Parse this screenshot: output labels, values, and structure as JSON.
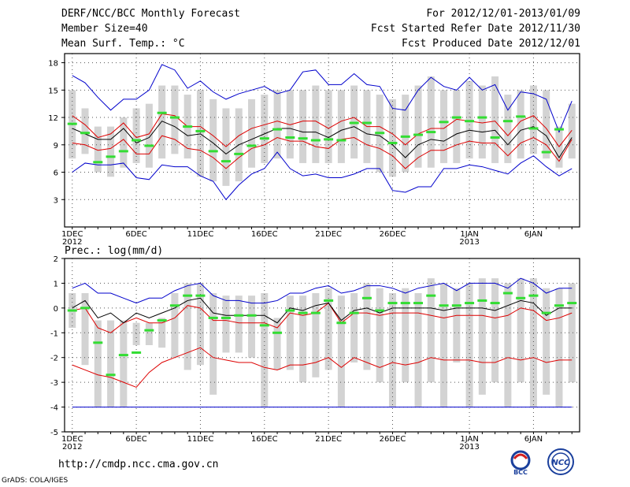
{
  "header": {
    "title": "DERF/NCC/BCC Monthly Forecast",
    "member_size": "Member Size=40",
    "variable": "Mean Surf. Temp.: °C",
    "forecast_period": "For 2012/12/01-2013/01/09",
    "refer_date": "Fcst Started Refer Date 2012/11/30",
    "produced_date": "Fcst Produced Date 2012/12/01"
  },
  "footer": {
    "url": "http://cmdp.ncc.cma.gov.cn",
    "credit": "GrADS: COLA/IGES",
    "logo_left_text": "BCC",
    "logo_right_text": "NCC"
  },
  "colors": {
    "box": "#d3d3d3",
    "observed": "#33dd33",
    "ensemble_mean": "#000000",
    "quartile_lines": "#dd0000",
    "extreme_lines": "#0000cc",
    "frame": "#000000",
    "grid": "#555555"
  },
  "chart_data": [
    {
      "type": "line",
      "title": "Mean Surf. Temp.: °C",
      "ylabel": "°C",
      "ylim": [
        0,
        19
      ],
      "yticks": [
        3,
        6,
        9,
        12,
        15,
        18
      ],
      "x_tick_labels": [
        {
          "day": 1,
          "label": "1DEC",
          "sub": "2012"
        },
        {
          "day": 6,
          "label": "6DEC",
          "sub": ""
        },
        {
          "day": 11,
          "label": "11DEC",
          "sub": ""
        },
        {
          "day": 16,
          "label": "16DEC",
          "sub": ""
        },
        {
          "day": 21,
          "label": "21DEC",
          "sub": ""
        },
        {
          "day": 26,
          "label": "26DEC",
          "sub": ""
        },
        {
          "day": 32,
          "label": "1JAN",
          "sub": "2013"
        },
        {
          "day": 37,
          "label": "6JAN",
          "sub": ""
        }
      ],
      "x": [
        1,
        2,
        3,
        4,
        5,
        6,
        7,
        8,
        9,
        10,
        11,
        12,
        13,
        14,
        15,
        16,
        17,
        18,
        19,
        20,
        21,
        22,
        23,
        24,
        25,
        26,
        27,
        28,
        29,
        30,
        31,
        32,
        33,
        34,
        35,
        36,
        37,
        38,
        39,
        40
      ],
      "box_low": [
        7.5,
        8.0,
        6.0,
        5.5,
        6.5,
        7.0,
        6.5,
        7.5,
        8.0,
        7.5,
        5.5,
        5.0,
        4.5,
        5.0,
        6.5,
        7.0,
        7.5,
        7.5,
        7.0,
        7.0,
        7.0,
        7.0,
        7.5,
        7.0,
        6.0,
        5.5,
        6.0,
        6.5,
        6.5,
        7.0,
        7.0,
        7.5,
        7.5,
        7.0,
        7.0,
        7.5,
        8.0,
        7.5,
        6.5,
        7.5
      ],
      "box_high": [
        15.0,
        13.0,
        11.0,
        11.0,
        12.0,
        13.0,
        13.5,
        15.5,
        15.5,
        14.5,
        15.0,
        14.0,
        13.0,
        13.0,
        14.0,
        14.5,
        15.0,
        15.0,
        15.0,
        15.5,
        15.0,
        15.0,
        15.5,
        15.0,
        14.5,
        14.0,
        14.5,
        15.5,
        16.5,
        15.0,
        15.0,
        16.0,
        15.5,
        16.5,
        14.5,
        15.0,
        15.5,
        15.0,
        11.0,
        13.5
      ],
      "series": [
        {
          "name": "max",
          "values": [
            16.6,
            15.8,
            14.2,
            12.8,
            14.0,
            14.0,
            15.0,
            17.8,
            17.2,
            15.2,
            16.0,
            14.8,
            14.0,
            14.6,
            15.0,
            15.4,
            14.6,
            15.0,
            17.0,
            17.2,
            15.6,
            15.6,
            16.8,
            15.6,
            15.4,
            13.0,
            12.8,
            15.0,
            16.4,
            15.4,
            15.0,
            16.4,
            15.0,
            15.6,
            12.8,
            14.8,
            14.6,
            14.0,
            10.4,
            13.8
          ]
        },
        {
          "name": "p75",
          "values": [
            12.2,
            11.2,
            9.8,
            10.2,
            11.4,
            9.8,
            10.2,
            12.4,
            12.2,
            11.0,
            11.0,
            10.0,
            8.8,
            10.0,
            10.8,
            11.2,
            11.6,
            11.2,
            11.6,
            11.6,
            10.8,
            11.6,
            12.0,
            11.0,
            11.0,
            10.2,
            9.0,
            10.2,
            10.8,
            10.8,
            11.8,
            11.6,
            11.4,
            11.6,
            10.0,
            11.6,
            12.2,
            10.8,
            8.8,
            10.6
          ]
        },
        {
          "name": "mean",
          "values": [
            10.8,
            10.2,
            9.6,
            9.6,
            10.8,
            9.2,
            9.8,
            11.6,
            11.0,
            10.0,
            10.2,
            9.2,
            8.0,
            9.0,
            9.6,
            10.2,
            10.8,
            10.8,
            10.4,
            10.4,
            9.8,
            10.6,
            11.0,
            10.2,
            10.0,
            9.0,
            7.6,
            9.0,
            9.6,
            9.4,
            10.2,
            10.6,
            10.4,
            10.6,
            9.0,
            10.6,
            11.0,
            10.0,
            7.6,
            9.8
          ]
        },
        {
          "name": "p25",
          "values": [
            9.2,
            9.0,
            8.4,
            8.6,
            9.6,
            8.0,
            8.0,
            10.0,
            9.6,
            8.6,
            8.4,
            7.6,
            6.4,
            7.6,
            8.6,
            9.0,
            9.8,
            9.4,
            9.4,
            8.8,
            8.6,
            9.6,
            9.8,
            9.0,
            8.6,
            7.8,
            6.4,
            7.6,
            8.4,
            8.4,
            9.0,
            9.4,
            9.2,
            9.2,
            7.8,
            9.2,
            9.8,
            9.0,
            7.2,
            9.6
          ]
        },
        {
          "name": "min",
          "values": [
            6.0,
            7.0,
            6.8,
            6.8,
            7.0,
            5.4,
            5.2,
            6.8,
            6.6,
            6.6,
            5.6,
            5.0,
            3.0,
            4.6,
            5.8,
            6.4,
            8.2,
            6.4,
            5.6,
            5.8,
            5.4,
            5.4,
            5.8,
            6.4,
            6.4,
            4.0,
            3.8,
            4.4,
            4.4,
            6.4,
            6.4,
            6.8,
            6.6,
            6.2,
            5.8,
            7.0,
            7.8,
            6.6,
            5.6,
            6.4
          ]
        }
      ],
      "observed": [
        11.3,
        10.3,
        7.1,
        7.7,
        8.3,
        9.5,
        8.9,
        12.5,
        12.0,
        11.0,
        10.5,
        8.3,
        7.2,
        8.0,
        8.9,
        9.7,
        10.7,
        9.8,
        9.7,
        9.5,
        9.6,
        9.5,
        11.4,
        11.4,
        10.3,
        9.2,
        9.9,
        10.1,
        10.4,
        11.5,
        12.0,
        11.6,
        12.0,
        9.8,
        11.6,
        12.1,
        10.8,
        8.2,
        10.7,
        null
      ]
    },
    {
      "type": "line",
      "title": "Prec.: log(mm/d)",
      "ylabel": "log(mm/d)",
      "ylim": [
        -5,
        2
      ],
      "yticks": [
        -5,
        -4,
        -3,
        -2,
        -1,
        0,
        1,
        2
      ],
      "x_tick_labels": [
        {
          "day": 1,
          "label": "1DEC",
          "sub": "2012"
        },
        {
          "day": 6,
          "label": "6DEC",
          "sub": ""
        },
        {
          "day": 11,
          "label": "11DEC",
          "sub": ""
        },
        {
          "day": 16,
          "label": "16DEC",
          "sub": ""
        },
        {
          "day": 21,
          "label": "21DEC",
          "sub": ""
        },
        {
          "day": 26,
          "label": "26DEC",
          "sub": ""
        },
        {
          "day": 32,
          "label": "1JAN",
          "sub": "2013"
        },
        {
          "day": 37,
          "label": "6JAN",
          "sub": ""
        }
      ],
      "x": [
        1,
        2,
        3,
        4,
        5,
        6,
        7,
        8,
        9,
        10,
        11,
        12,
        13,
        14,
        15,
        16,
        17,
        18,
        19,
        20,
        21,
        22,
        23,
        24,
        25,
        26,
        27,
        28,
        29,
        30,
        31,
        32,
        33,
        34,
        35,
        36,
        37,
        38,
        39,
        40
      ],
      "box_low": [
        -0.8,
        -2.3,
        -4.0,
        -4.0,
        -4.0,
        -1.5,
        -1.5,
        -1.6,
        -2.0,
        -2.5,
        -2.3,
        -3.5,
        -1.8,
        -1.8,
        -2.0,
        -4.0,
        -2.5,
        -2.5,
        -3.0,
        -2.8,
        -2.5,
        -4.0,
        -2.2,
        -2.5,
        -3.0,
        -4.0,
        -3.0,
        -4.0,
        -3.0,
        -4.0,
        -2.2,
        -4.0,
        -3.5,
        -3.0,
        -4.0,
        -3.0,
        -4.0,
        -3.5,
        -4.0,
        -3.0
      ],
      "box_high": [
        0.6,
        0.6,
        -0.5,
        -0.5,
        -0.5,
        -0.6,
        -0.6,
        -0.4,
        0.6,
        1.0,
        1.0,
        0.6,
        0.5,
        0.5,
        0.5,
        0.6,
        -0.4,
        0.5,
        0.5,
        0.6,
        0.8,
        0.5,
        0.6,
        1.0,
        0.8,
        0.6,
        0.8,
        0.6,
        1.2,
        1.0,
        0.8,
        1.0,
        1.2,
        1.2,
        1.0,
        1.2,
        1.2,
        0.8,
        0.8,
        1.0
      ],
      "series": [
        {
          "name": "max",
          "values": [
            0.8,
            1.0,
            0.6,
            0.6,
            0.4,
            0.2,
            0.4,
            0.4,
            0.7,
            0.9,
            1.0,
            0.5,
            0.3,
            0.3,
            0.2,
            0.2,
            0.3,
            0.6,
            0.6,
            0.8,
            0.9,
            0.6,
            0.7,
            0.9,
            0.9,
            0.8,
            0.6,
            0.8,
            0.9,
            1.0,
            0.7,
            1.0,
            1.0,
            1.0,
            0.8,
            1.2,
            1.0,
            0.6,
            0.8,
            0.8
          ]
        },
        {
          "name": "p75",
          "values": [
            -0.1,
            0.0,
            -0.8,
            -1.0,
            -0.6,
            -0.4,
            -0.6,
            -0.6,
            -0.4,
            0.1,
            0.0,
            -0.5,
            -0.5,
            -0.6,
            -0.6,
            -0.6,
            -0.8,
            -0.2,
            -0.3,
            -0.2,
            0.2,
            -0.6,
            -0.2,
            -0.2,
            -0.3,
            -0.2,
            -0.2,
            -0.2,
            -0.3,
            -0.4,
            -0.3,
            -0.3,
            -0.3,
            -0.4,
            -0.3,
            0.0,
            -0.1,
            -0.5,
            -0.4,
            -0.2
          ]
        },
        {
          "name": "mean",
          "values": [
            0.0,
            0.3,
            -0.4,
            -0.2,
            -0.6,
            -0.2,
            -0.4,
            -0.2,
            0.0,
            0.3,
            0.4,
            -0.2,
            -0.3,
            -0.3,
            -0.3,
            -0.3,
            -0.6,
            0.0,
            -0.1,
            0.1,
            0.2,
            -0.5,
            -0.1,
            0.0,
            -0.2,
            0.0,
            0.0,
            0.0,
            0.0,
            -0.1,
            0.0,
            0.0,
            0.0,
            -0.1,
            0.1,
            0.3,
            0.2,
            -0.3,
            0.0,
            0.0
          ]
        },
        {
          "name": "p25",
          "values": [
            -2.3,
            -2.5,
            -2.7,
            -2.8,
            -3.0,
            -3.2,
            -2.6,
            -2.2,
            -2.0,
            -1.8,
            -1.6,
            -2.0,
            -2.1,
            -2.2,
            -2.2,
            -2.4,
            -2.5,
            -2.3,
            -2.3,
            -2.2,
            -2.0,
            -2.4,
            -2.0,
            -2.2,
            -2.4,
            -2.2,
            -2.3,
            -2.2,
            -2.0,
            -2.1,
            -2.1,
            -2.1,
            -2.2,
            -2.2,
            -2.0,
            -2.1,
            -2.0,
            -2.2,
            -2.1,
            -2.1
          ]
        },
        {
          "name": "min",
          "values": [
            -4.0,
            -4.0,
            -4.0,
            -4.0,
            -4.0,
            -4.0,
            -4.0,
            -4.0,
            -4.0,
            -4.0,
            -4.0,
            -4.0,
            -4.0,
            -4.0,
            -4.0,
            -4.0,
            -4.0,
            -4.0,
            -4.0,
            -4.0,
            -4.0,
            -4.0,
            -4.0,
            -4.0,
            -4.0,
            -4.0,
            -4.0,
            -4.0,
            -4.0,
            -4.0,
            -4.0,
            -4.0,
            -4.0,
            -4.0,
            -4.0,
            -4.0,
            -4.0,
            -4.0,
            -4.0,
            -4.0
          ]
        }
      ],
      "observed": [
        -0.1,
        0.0,
        -1.4,
        -2.7,
        -1.9,
        -1.8,
        -0.9,
        -0.5,
        0.1,
        0.5,
        0.5,
        -0.4,
        -0.4,
        -0.3,
        -0.3,
        -0.7,
        -1.0,
        -0.1,
        -0.2,
        -0.2,
        0.3,
        -0.6,
        -0.2,
        0.4,
        -0.1,
        0.2,
        0.2,
        0.2,
        0.5,
        0.1,
        0.1,
        0.2,
        0.3,
        0.2,
        0.6,
        0.4,
        0.5,
        -0.2,
        0.1,
        0.2
      ]
    }
  ]
}
